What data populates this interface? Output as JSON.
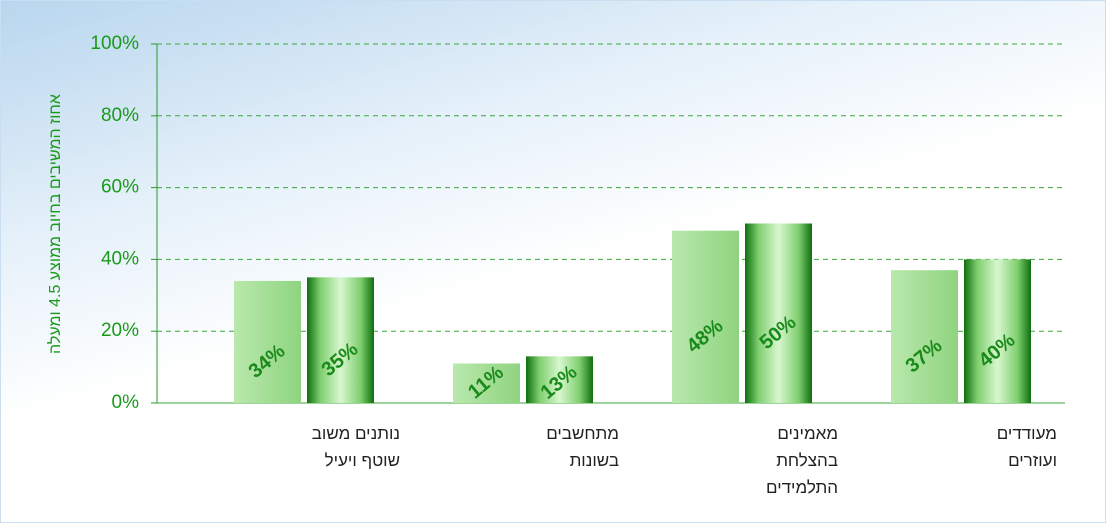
{
  "chart_data": {
    "type": "bar",
    "y_label": "אחוז המשיבים בחיוב ממוצע 4.5 ומעלה",
    "categories": [
      "נותנים משוב\nשוטף ויעיל",
      "מתחשבים\nבשונות",
      "מאמינים\nבהצלחת\nהתלמידים",
      "מעודדים\nועוזרים"
    ],
    "series": [
      {
        "color": "#9ddc8e",
        "values": [
          34,
          11,
          48,
          37
        ],
        "value_labels": [
          "34%",
          "11%",
          "48%",
          "37%"
        ]
      },
      {
        "color": "#1e8c1e",
        "values": [
          35,
          13,
          50,
          40
        ],
        "value_labels": [
          "35%",
          "13%",
          "50%",
          "40%"
        ]
      }
    ],
    "ylim": [
      0,
      100
    ],
    "yticks": [
      {
        "value": 0,
        "label": "0%"
      },
      {
        "value": 20,
        "label": "20%"
      },
      {
        "value": 40,
        "label": "40%"
      },
      {
        "value": 60,
        "label": "60%"
      },
      {
        "value": 80,
        "label": "80%"
      },
      {
        "value": 100,
        "label": "100%"
      }
    ],
    "grid": true
  }
}
